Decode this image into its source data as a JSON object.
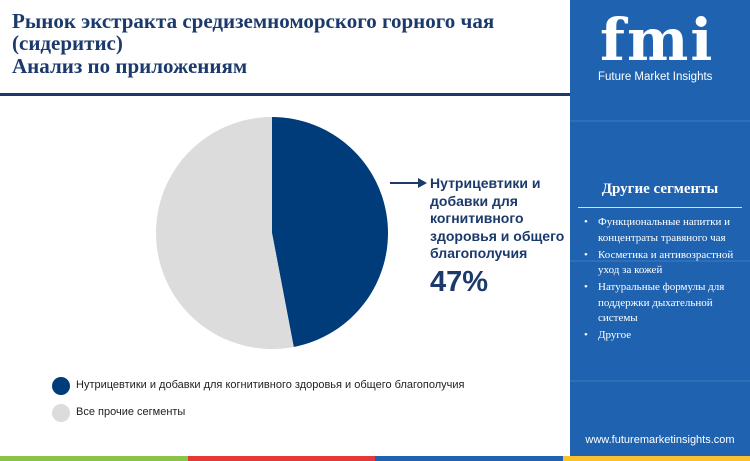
{
  "header": {
    "title": "Рынок экстракта средиземноморского горного чая (сидеритис)",
    "subtitle": "Анализ по приложениям"
  },
  "logo": {
    "main": "fmi",
    "sub": "Future Market Insights"
  },
  "sidebar": {
    "heading": "Другие сегменты",
    "items": [
      "Функциональные напитки и концентраты травяного чая",
      "Косметика и антивозрастной уход за кожей",
      "Натуральные формулы для поддержки дыхательной системы",
      "Другое"
    ],
    "website": "www.futuremarketinsights.com"
  },
  "callout": {
    "label": "Нутрицевтики и добавки для когнитивного здоровья и общего благополучия",
    "value": "47%"
  },
  "legend": [
    "Нутрицевтики и добавки для когнитивного здоровья и общего благополучия",
    "Все прочие сегменты"
  ],
  "colors": {
    "primary": "#003b7a",
    "other": "#dcdcdc",
    "title": "#1b3a6b",
    "sidebar": "#1f63b0"
  },
  "chart_data": {
    "type": "pie",
    "categories": [
      "Нутрицевтики и добавки для когнитивного здоровья и общего благополучия",
      "Все прочие сегменты"
    ],
    "values": [
      47,
      53
    ],
    "colors": [
      "#003b7a",
      "#dcdcdc"
    ],
    "legend_position": "bottom-left"
  }
}
